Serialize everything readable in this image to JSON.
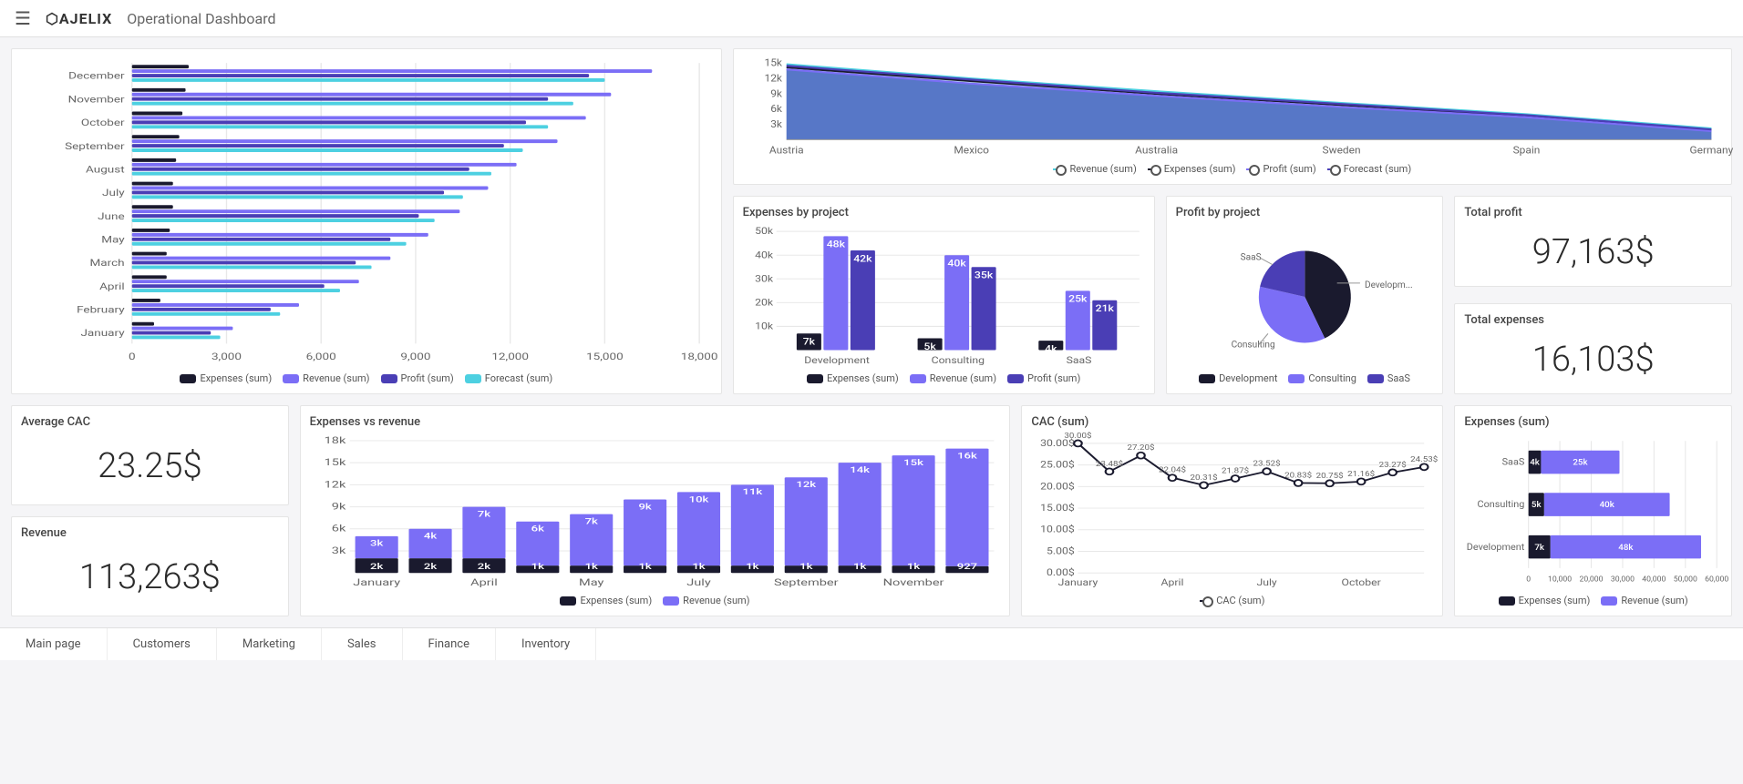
{
  "header": {
    "logo_text": "AJELIX",
    "page_title": "Operational Dashboard"
  },
  "colors": {
    "expenses": "#1a1a2e",
    "revenue": "#7b6ef6",
    "profit": "#4a3eb5",
    "forecast": "#4dd0e1",
    "grid": "#e8e8e8",
    "axis": "#666666"
  },
  "monthly_hbar": {
    "type": "bar",
    "months": [
      "December",
      "November",
      "October",
      "September",
      "August",
      "July",
      "June",
      "May",
      "March",
      "April",
      "February",
      "January"
    ],
    "expenses": [
      1800,
      1700,
      1600,
      1500,
      1400,
      1300,
      1300,
      1200,
      1100,
      1100,
      900,
      700
    ],
    "revenue": [
      16500,
      15200,
      14400,
      13500,
      12200,
      11300,
      10400,
      9400,
      8200,
      7200,
      5300,
      3200
    ],
    "profit": [
      14500,
      13200,
      12500,
      11800,
      10700,
      9900,
      9100,
      8200,
      7100,
      6100,
      4400,
      2500
    ],
    "forecast": [
      15000,
      14000,
      13200,
      12400,
      11400,
      10500,
      9600,
      8700,
      7600,
      6600,
      4700,
      2800
    ],
    "xticks": [
      0,
      3000,
      6000,
      9000,
      12000,
      15000,
      18000
    ],
    "xmax": 18000,
    "legend": [
      {
        "label": "Expenses (sum)",
        "key": "expenses"
      },
      {
        "label": "Revenue (sum)",
        "key": "revenue"
      },
      {
        "label": "Profit (sum)",
        "key": "profit"
      },
      {
        "label": "Forecast (sum)",
        "key": "forecast"
      }
    ]
  },
  "area_chart": {
    "type": "area",
    "categories": [
      "Austria",
      "Mexico",
      "Australia",
      "Sweden",
      "Spain",
      "Germany"
    ],
    "yticks": [
      "3k",
      "6k",
      "9k",
      "12k",
      "15k"
    ],
    "ymax": 15000,
    "series": {
      "revenue": [
        14800,
        12000,
        9500,
        7200,
        5000,
        2200
      ],
      "expenses": [
        14200,
        11500,
        9000,
        6800,
        4700,
        1900
      ],
      "profit": [
        13800,
        11000,
        8600,
        6400,
        4400,
        1700
      ],
      "forecast": [
        14500,
        11800,
        9200,
        7000,
        4800,
        2000
      ]
    },
    "legend": [
      {
        "label": "Revenue (sum)",
        "color": "#4dd0e1"
      },
      {
        "label": "Expenses (sum)",
        "color": "#1a1a2e"
      },
      {
        "label": "Profit (sum)",
        "color": "#7b6ef6"
      },
      {
        "label": "Forecast (sum)",
        "color": "#4a3eb5"
      }
    ]
  },
  "expenses_project": {
    "title": "Expenses by project",
    "type": "bar",
    "categories": [
      "Development",
      "Consulting",
      "SaaS"
    ],
    "yticks": [
      "10k",
      "20k",
      "30k",
      "40k",
      "50k"
    ],
    "ymax": 50000,
    "expenses": [
      7000,
      5000,
      4000
    ],
    "revenue": [
      48000,
      40000,
      25000
    ],
    "profit": [
      42000,
      35000,
      21000
    ],
    "expenses_label": [
      "7k",
      "5k",
      "4k"
    ],
    "revenue_label": [
      "48k",
      "40k",
      "25k"
    ],
    "profit_label": [
      "42k",
      "35k",
      "21k"
    ],
    "legend": [
      {
        "label": "Expenses (sum)",
        "key": "expenses"
      },
      {
        "label": "Revenue (sum)",
        "key": "revenue"
      },
      {
        "label": "Profit (sum)",
        "key": "profit"
      }
    ]
  },
  "profit_project": {
    "title": "Profit by project",
    "type": "pie",
    "slices": [
      {
        "label": "Development",
        "value": 42,
        "color": "#1a1a2e"
      },
      {
        "label": "Consulting",
        "value": 35,
        "color": "#7b6ef6"
      },
      {
        "label": "SaaS",
        "value": 21,
        "color": "#4a3eb5"
      }
    ],
    "side_labels": {
      "top": "SaaS",
      "right": "Developm...",
      "bottom": "Consulting"
    }
  },
  "total_profit": {
    "title": "Total profit",
    "value": "97,163$"
  },
  "total_expenses": {
    "title": "Total expenses",
    "value": "16,103$"
  },
  "avg_cac": {
    "title": "Average CAC",
    "value": "23.25$"
  },
  "revenue_kpi": {
    "title": "Revenue",
    "value": "113,263$"
  },
  "exp_vs_rev": {
    "title": "Expenses vs revenue",
    "type": "bar",
    "months": [
      "January",
      "",
      "April",
      "",
      "May",
      "",
      "July",
      "",
      "September",
      "",
      "November",
      ""
    ],
    "yticks": [
      "3k",
      "6k",
      "9k",
      "12k",
      "15k",
      "18k"
    ],
    "ymax": 18000,
    "expenses": [
      2000,
      2000,
      2000,
      1000,
      1000,
      1000,
      1000,
      1000,
      1000,
      1000,
      1000,
      927
    ],
    "revenue": [
      3000,
      4000,
      7000,
      6000,
      7000,
      9000,
      10000,
      11000,
      12000,
      14000,
      15000,
      16000
    ],
    "expenses_label": [
      "2k",
      "2k",
      "2k",
      "1k",
      "1k",
      "1k",
      "1k",
      "1k",
      "1k",
      "1k",
      "1k",
      "927"
    ],
    "revenue_label": [
      "3k",
      "4k",
      "7k",
      "6k",
      "7k",
      "9k",
      "10k",
      "11k",
      "12k",
      "14k",
      "15k",
      "16k"
    ],
    "legend": [
      {
        "label": "Expenses (sum)",
        "key": "expenses"
      },
      {
        "label": "Revenue (sum)",
        "key": "revenue"
      }
    ]
  },
  "cac_line": {
    "title": "CAC (sum)",
    "type": "line",
    "months": [
      "January",
      "April",
      "July",
      "October"
    ],
    "yticks": [
      "0.00$",
      "5.00$",
      "10.00$",
      "15.00$",
      "20.00$",
      "25.00$",
      "30.00$"
    ],
    "ymax": 30,
    "points": [
      30.0,
      23.48,
      27.2,
      22.04,
      20.31,
      21.87,
      23.52,
      20.83,
      20.75,
      21.16,
      23.27,
      24.53
    ],
    "point_labels": [
      "30.00$",
      "23.48$",
      "27.20$",
      "22.04$",
      "20.31$",
      "21.87$",
      "23.52$",
      "20.83$",
      "20.75$",
      "21.16$",
      "23.27$",
      "24.53$"
    ],
    "legend_label": "CAC (sum)"
  },
  "exp_hbar": {
    "title": "Expenses (sum)",
    "type": "bar",
    "categories": [
      "SaaS",
      "Consulting",
      "Development"
    ],
    "xticks": [
      0,
      10000,
      20000,
      30000,
      40000,
      50000,
      60000
    ],
    "xtick_labels": [
      "0",
      "10,000",
      "20,000",
      "30,000",
      "40,000",
      "50,000",
      "60,000"
    ],
    "xmax": 60000,
    "expenses": [
      4000,
      5000,
      7000
    ],
    "revenue": [
      25000,
      40000,
      48000
    ],
    "expenses_label": [
      "4k",
      "5k",
      "7k"
    ],
    "revenue_label": [
      "25k",
      "40k",
      "48k"
    ],
    "legend": [
      {
        "label": "Expenses (sum)",
        "key": "expenses"
      },
      {
        "label": "Revenue (sum)",
        "key": "revenue"
      }
    ]
  },
  "tabs": [
    "Main page",
    "Customers",
    "Marketing",
    "Sales",
    "Finance",
    "Inventory"
  ]
}
